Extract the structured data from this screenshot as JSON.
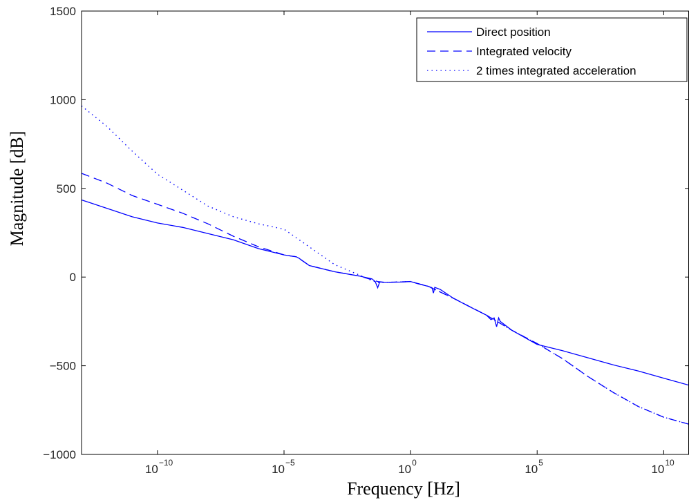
{
  "chart_data": {
    "type": "line",
    "xlabel": "Frequency [Hz]",
    "ylabel": "Magnitude [dB]",
    "x_scale": "log",
    "xlim": [
      1e-13,
      100000000000.0
    ],
    "ylim": [
      -1000,
      1500
    ],
    "x_ticks": [
      {
        "value": 1e-10,
        "base": "10",
        "exp": "−10"
      },
      {
        "value": 1e-05,
        "base": "10",
        "exp": "−5"
      },
      {
        "value": 1,
        "base": "10",
        "exp": "0"
      },
      {
        "value": 100000.0,
        "base": "10",
        "exp": "5"
      },
      {
        "value": 10000000000.0,
        "base": "10",
        "exp": "10"
      }
    ],
    "y_ticks": [
      {
        "value": 1500,
        "label": "1500"
      },
      {
        "value": 1000,
        "label": "1000"
      },
      {
        "value": 500,
        "label": "500"
      },
      {
        "value": 0,
        "label": "0"
      },
      {
        "value": -500,
        "label": "−500"
      },
      {
        "value": -1000,
        "label": "−1000"
      }
    ],
    "grid": false,
    "legend_position": "top-right",
    "series": [
      {
        "name": "Direct position",
        "color": "#0000ff",
        "style": "solid",
        "points": [
          [
            1e-13,
            435
          ],
          [
            1e-11,
            340
          ],
          [
            1e-10,
            305
          ],
          [
            1e-09,
            280
          ],
          [
            1e-08,
            245
          ],
          [
            1e-07,
            210
          ],
          [
            1e-06,
            160
          ],
          [
            1e-05,
            125
          ],
          [
            2e-05,
            118
          ],
          [
            3e-05,
            115
          ],
          [
            4e-05,
            105
          ],
          [
            5e-05,
            95
          ],
          [
            0.0001,
            65
          ],
          [
            0.001,
            30
          ],
          [
            0.01,
            5
          ],
          [
            0.03,
            -10
          ],
          [
            0.04,
            -25
          ],
          [
            0.05,
            -60
          ],
          [
            0.06,
            -28
          ],
          [
            0.1,
            -30
          ],
          [
            0.5,
            -28
          ],
          [
            1,
            -25
          ],
          [
            2,
            -38
          ],
          [
            5,
            -52
          ],
          [
            7,
            -60
          ],
          [
            8,
            -90
          ],
          [
            9,
            -58
          ],
          [
            15,
            -70
          ],
          [
            50,
            -120
          ],
          [
            200,
            -165
          ],
          [
            1000,
            -215
          ],
          [
            1500,
            -240
          ],
          [
            2000,
            -230
          ],
          [
            2500,
            -280
          ],
          [
            3000,
            -230
          ],
          [
            3500,
            -250
          ],
          [
            10000.0,
            -300
          ],
          [
            100000.0,
            -380
          ],
          [
            1000000.0,
            -415
          ],
          [
            10000000.0,
            -455
          ],
          [
            100000000.0,
            -495
          ],
          [
            1000000000.0,
            -530
          ],
          [
            10000000000.0,
            -570
          ],
          [
            100000000000.0,
            -610
          ]
        ]
      },
      {
        "name": "Integrated velocity",
        "color": "#0000ff",
        "style": "dashed",
        "points": [
          [
            1e-13,
            585
          ],
          [
            1e-12,
            530
          ],
          [
            1e-11,
            460
          ],
          [
            1e-10,
            410
          ],
          [
            1e-09,
            360
          ],
          [
            1e-08,
            300
          ],
          [
            1e-07,
            230
          ],
          [
            1e-06,
            170
          ],
          [
            1e-05,
            125
          ],
          [
            2e-05,
            118
          ],
          [
            3e-05,
            115
          ],
          [
            5e-05,
            95
          ],
          [
            0.0001,
            65
          ],
          [
            0.001,
            30
          ],
          [
            0.01,
            5
          ],
          [
            0.05,
            -25
          ],
          [
            0.1,
            -30
          ],
          [
            1,
            -25
          ],
          [
            5,
            -52
          ],
          [
            50,
            -120
          ],
          [
            1000,
            -215
          ],
          [
            10000.0,
            -300
          ],
          [
            100000.0,
            -375
          ],
          [
            1000000.0,
            -460
          ],
          [
            10000000.0,
            -560
          ],
          [
            100000000.0,
            -650
          ],
          [
            1000000000.0,
            -730
          ],
          [
            10000000000.0,
            -790
          ],
          [
            100000000000.0,
            -830
          ]
        ]
      },
      {
        "name": "2 times integrated acceleration",
        "color": "#0000ff",
        "style": "dotted",
        "points": [
          [
            1e-13,
            965
          ],
          [
            1e-12,
            850
          ],
          [
            1e-11,
            710
          ],
          [
            1e-10,
            580
          ],
          [
            1e-09,
            490
          ],
          [
            1e-08,
            400
          ],
          [
            1e-07,
            340
          ],
          [
            1e-06,
            300
          ],
          [
            1e-05,
            270
          ],
          [
            0.0001,
            170
          ],
          [
            0.001,
            70
          ],
          [
            0.01,
            10
          ],
          [
            0.03,
            -20
          ],
          [
            0.05,
            -30
          ],
          [
            0.1,
            -30
          ],
          [
            1,
            -25
          ],
          [
            5,
            -52
          ],
          [
            50,
            -120
          ],
          [
            1000,
            -215
          ],
          [
            10000.0,
            -300
          ],
          [
            100000.0,
            -375
          ],
          [
            1000000.0,
            -460
          ],
          [
            10000000.0,
            -560
          ],
          [
            100000000.0,
            -650
          ],
          [
            1000000000.0,
            -730
          ],
          [
            10000000000.0,
            -790
          ],
          [
            100000000000.0,
            -830
          ]
        ]
      }
    ]
  }
}
